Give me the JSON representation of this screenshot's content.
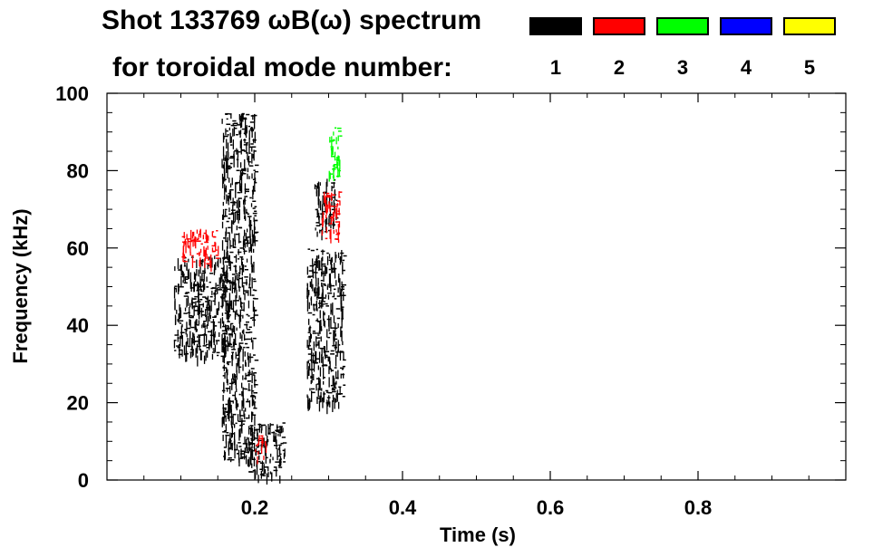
{
  "chart_data": {
    "type": "spectrogram",
    "title": "Shot 133769 ωB(ω) spectrum",
    "subtitle": "for toroidal mode number:",
    "xlabel": "Time (s)",
    "ylabel": "Frequency (kHz)",
    "xlim": [
      0.0,
      1.0
    ],
    "ylim": [
      0,
      100
    ],
    "xticks": [
      0.2,
      0.4,
      0.6,
      0.8
    ],
    "xtick_labels": [
      "0.2",
      "0.4",
      "0.6",
      "0.8"
    ],
    "yticks": [
      0,
      20,
      40,
      60,
      80,
      100
    ],
    "ytick_labels": [
      "0",
      "20",
      "40",
      "60",
      "80",
      "100"
    ],
    "grid": false,
    "legend_placement": "top-right",
    "legend": [
      {
        "label": "1",
        "color": "#000000"
      },
      {
        "label": "2",
        "color": "#ff0000"
      },
      {
        "label": "3",
        "color": "#00ff00"
      },
      {
        "label": "4",
        "color": "#0000ff"
      },
      {
        "label": "5",
        "color": "#ffff00"
      }
    ],
    "regions": [
      {
        "mode": 1,
        "color": "#000000",
        "t": [
          0.09,
          0.165
        ],
        "f": [
          32,
          58
        ]
      },
      {
        "mode": 1,
        "color": "#000000",
        "t": [
          0.155,
          0.2
        ],
        "f": [
          5,
          95
        ]
      },
      {
        "mode": 1,
        "color": "#000000",
        "t": [
          0.19,
          0.24
        ],
        "f": [
          1,
          15
        ]
      },
      {
        "mode": 1,
        "color": "#000000",
        "t": [
          0.27,
          0.32
        ],
        "f": [
          20,
          60
        ]
      },
      {
        "mode": 1,
        "color": "#000000",
        "t": [
          0.28,
          0.31
        ],
        "f": [
          64,
          78
        ]
      },
      {
        "mode": 2,
        "color": "#ff0000",
        "t": [
          0.1,
          0.15
        ],
        "f": [
          56,
          65
        ]
      },
      {
        "mode": 2,
        "color": "#ff0000",
        "t": [
          0.29,
          0.315
        ],
        "f": [
          62,
          75
        ]
      },
      {
        "mode": 2,
        "color": "#ff0000",
        "t": [
          0.2,
          0.215
        ],
        "f": [
          6,
          12
        ]
      },
      {
        "mode": 3,
        "color": "#00ff00",
        "t": [
          0.3,
          0.315
        ],
        "f": [
          78,
          92
        ]
      }
    ]
  }
}
